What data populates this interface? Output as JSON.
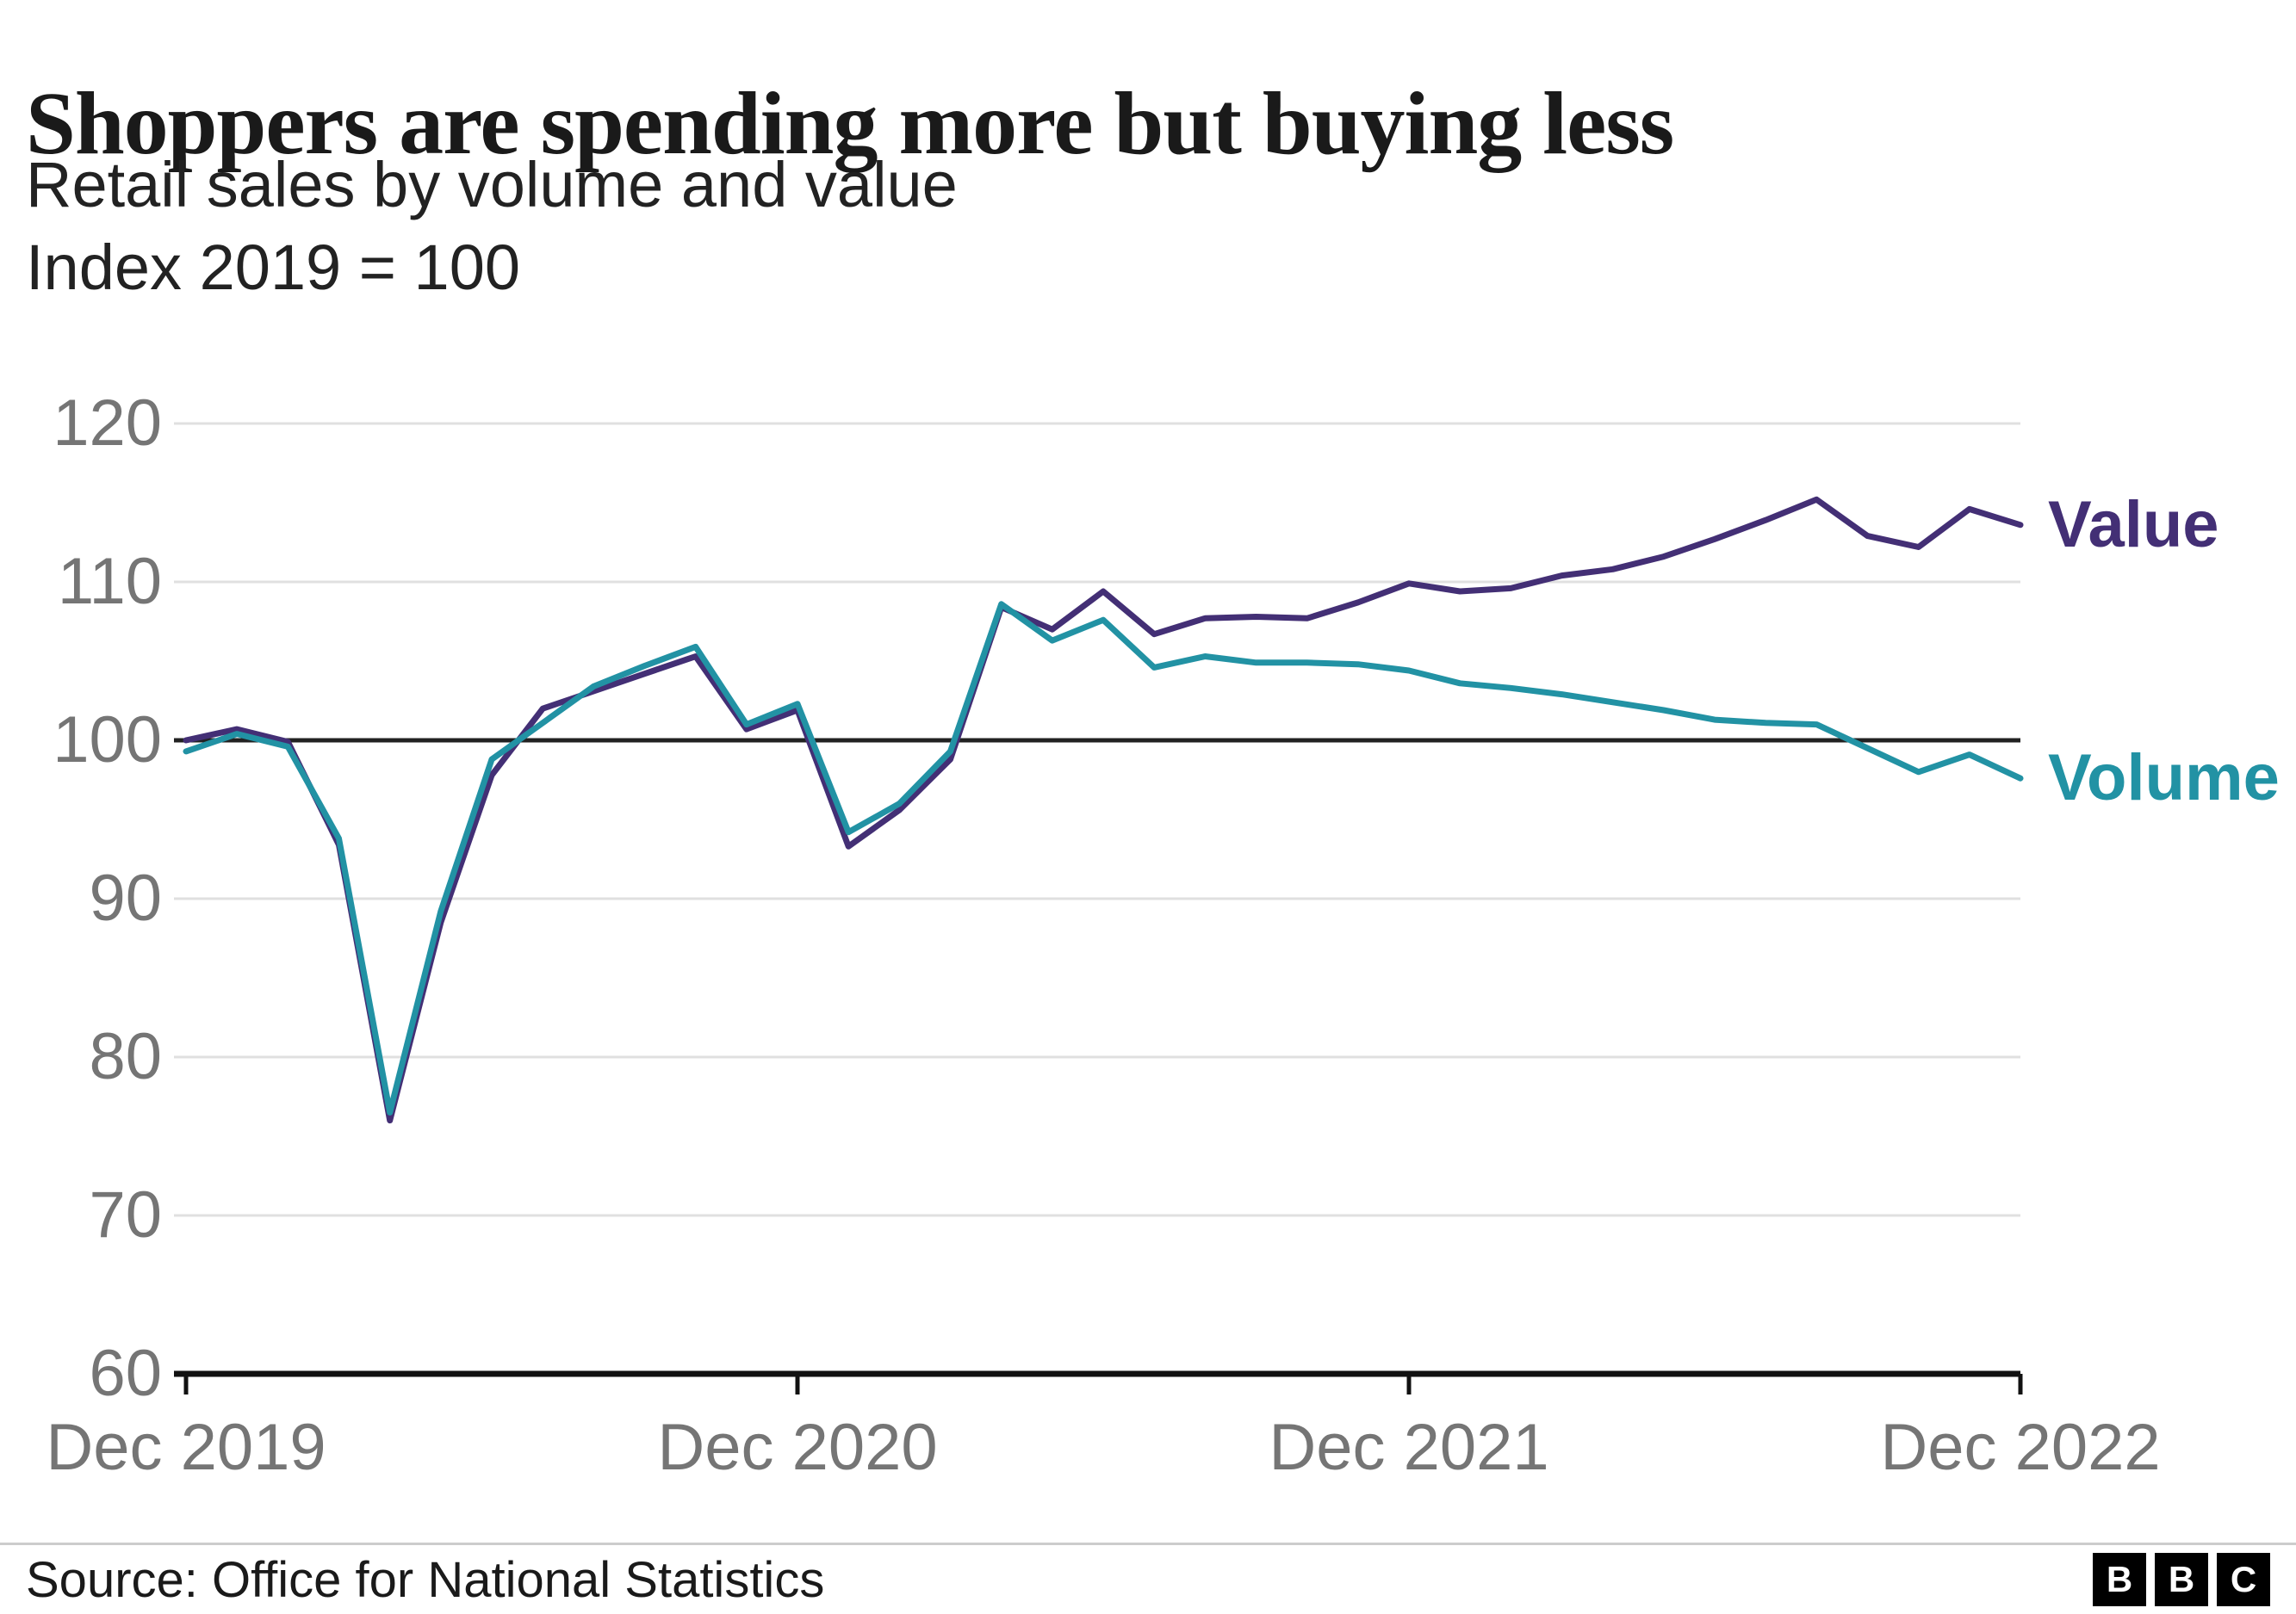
{
  "header": {
    "title": "Shoppers are spending more but buying less",
    "subtitle": "Retail sales by volume and value",
    "index_note": "Index 2019 = 100"
  },
  "chart_data": {
    "type": "line",
    "title": "Shoppers are spending more but buying less",
    "subtitle": "Retail sales by volume and value",
    "unit_note": "Index 2019 = 100",
    "ylim": [
      60,
      120
    ],
    "y_ticks": [
      60,
      70,
      80,
      90,
      100,
      110,
      120
    ],
    "baseline_value": 100,
    "grid": "horizontal",
    "x_tick_labels": [
      "Dec 2019",
      "Dec 2020",
      "Dec 2021",
      "Dec 2022"
    ],
    "x_tick_month_indices": [
      0,
      12,
      24,
      36
    ],
    "months": [
      "Dec 2019",
      "Jan 2020",
      "Feb 2020",
      "Mar 2020",
      "Apr 2020",
      "May 2020",
      "Jun 2020",
      "Jul 2020",
      "Aug 2020",
      "Sep 2020",
      "Oct 2020",
      "Nov 2020",
      "Dec 2020",
      "Jan 2021",
      "Feb 2021",
      "Mar 2021",
      "Apr 2021",
      "May 2021",
      "Jun 2021",
      "Jul 2021",
      "Aug 2021",
      "Sep 2021",
      "Oct 2021",
      "Nov 2021",
      "Dec 2021",
      "Jan 2022",
      "Feb 2022",
      "Mar 2022",
      "Apr 2022",
      "May 2022",
      "Jun 2022",
      "Jul 2022",
      "Aug 2022",
      "Sep 2022",
      "Oct 2022",
      "Nov 2022",
      "Dec 2022"
    ],
    "series": [
      {
        "name": "Value",
        "color": "#432f75",
        "values": [
          100.0,
          100.7,
          99.9,
          93.4,
          76.0,
          88.5,
          97.8,
          102.0,
          103.1,
          104.2,
          105.3,
          100.7,
          101.9,
          93.3,
          95.6,
          98.8,
          108.4,
          107.0,
          109.4,
          106.7,
          107.7,
          107.8,
          107.7,
          108.7,
          109.9,
          109.4,
          109.6,
          110.4,
          110.8,
          111.6,
          112.7,
          113.9,
          115.2,
          112.9,
          112.2,
          114.6,
          113.6
        ]
      },
      {
        "name": "Volume",
        "color": "#2292a4",
        "values": [
          99.3,
          100.4,
          99.6,
          93.8,
          76.5,
          89.2,
          98.8,
          101.1,
          103.4,
          104.7,
          105.9,
          101.0,
          102.3,
          94.2,
          96.0,
          99.3,
          108.6,
          106.3,
          107.6,
          104.6,
          105.3,
          104.9,
          104.9,
          104.8,
          104.4,
          103.6,
          103.3,
          102.9,
          102.4,
          101.9,
          101.3,
          101.1,
          101.0,
          99.5,
          98.0,
          99.1,
          97.6
        ]
      }
    ],
    "colors": {
      "grid": "#e0e0e0",
      "baseline": "#222222",
      "axis": "#111111",
      "tick_label": "#757575"
    },
    "legend_position": "right-of-line-ends"
  },
  "footer": {
    "source": "Source: Office for National Statistics",
    "logo_letters": [
      "B",
      "B",
      "C"
    ]
  }
}
